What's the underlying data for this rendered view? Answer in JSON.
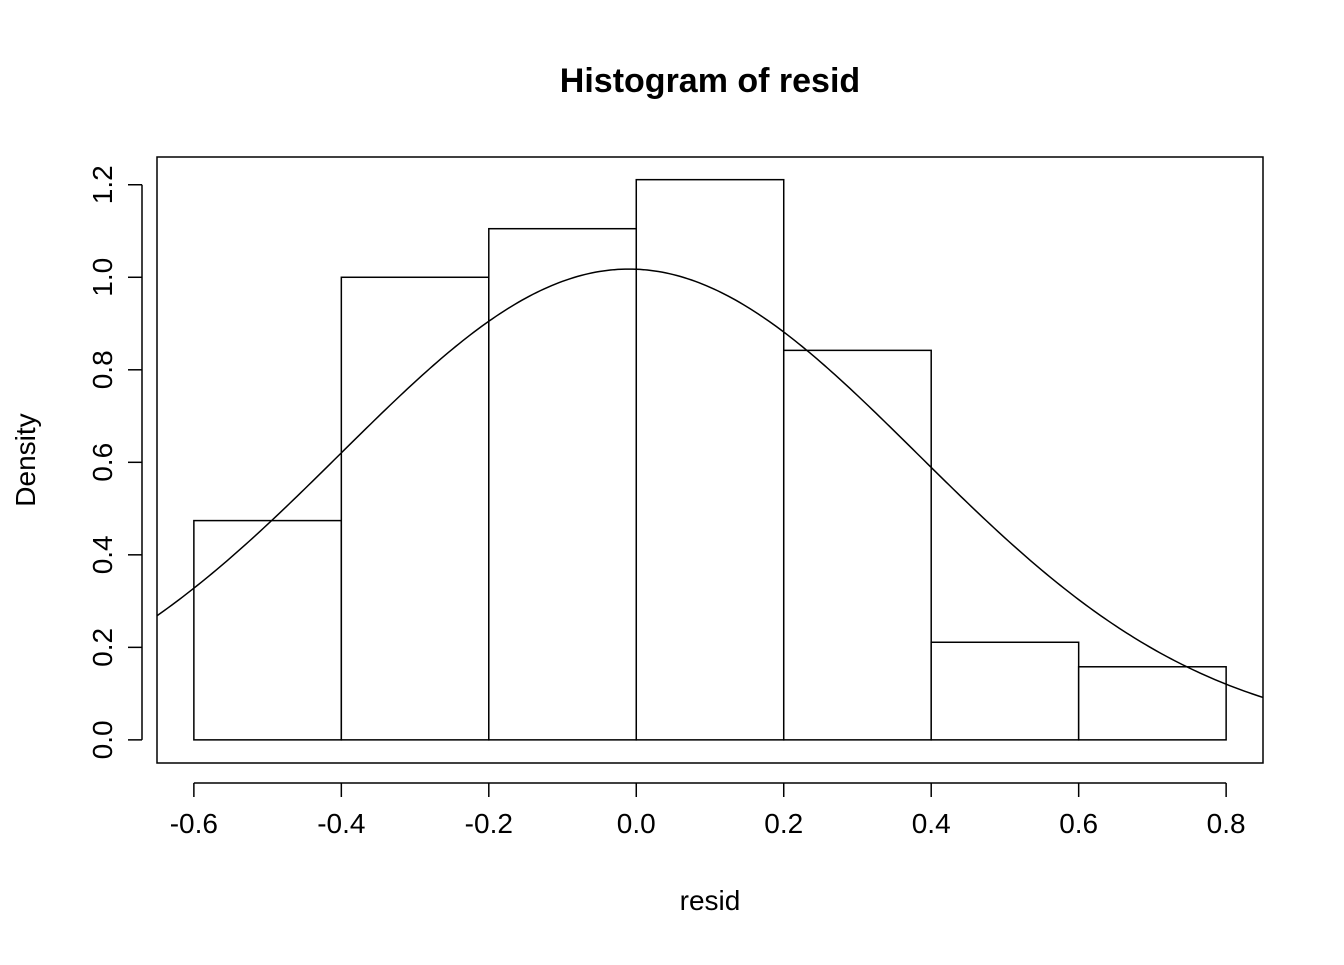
{
  "chart_data": {
    "type": "bar",
    "subtype": "histogram",
    "title": "Histogram of resid",
    "xlabel": "resid",
    "ylabel": "Density",
    "xlim": [
      -0.65,
      0.85
    ],
    "ylim": [
      -0.05,
      1.26
    ],
    "x_ticks": [
      "-0.6",
      "-0.4",
      "-0.2",
      "0.0",
      "0.2",
      "0.4",
      "0.6",
      "0.8"
    ],
    "y_ticks": [
      "0.0",
      "0.2",
      "0.4",
      "0.6",
      "0.8",
      "1.0",
      "1.2"
    ],
    "bins": [
      {
        "left": -0.6,
        "right": -0.4,
        "density": 0.474
      },
      {
        "left": -0.4,
        "right": -0.2,
        "density": 1.0
      },
      {
        "left": -0.2,
        "right": 0.0,
        "density": 1.105
      },
      {
        "left": 0.0,
        "right": 0.2,
        "density": 1.211
      },
      {
        "left": 0.2,
        "right": 0.4,
        "density": 0.842
      },
      {
        "left": 0.4,
        "right": 0.6,
        "density": 0.211
      },
      {
        "left": 0.6,
        "right": 0.8,
        "density": 0.158
      }
    ],
    "density_curve": {
      "type": "normal",
      "mean": -0.01,
      "sd": 0.392
    },
    "grid": false,
    "legend": "none",
    "colors": {
      "bar_fill": "#ffffff",
      "bar_stroke": "#000000",
      "curve": "#000000",
      "axis": "#000000"
    }
  }
}
